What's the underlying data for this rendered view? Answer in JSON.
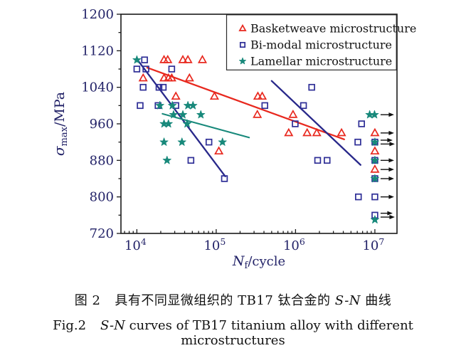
{
  "figure": {
    "caption_cn": {
      "label": "图 2",
      "pre": "具有不同显微组织的 TB17 钛合金的 ",
      "italic": "S-N",
      "post": " 曲线"
    },
    "caption_en": {
      "label": "Fig.2",
      "italic": "S-N",
      "post": " curves of TB17 titanium alloy with different microstructures"
    }
  },
  "colors": {
    "axis": "#1a1a1a",
    "tick_label": "#232368",
    "legend_text": "#141414",
    "legend_border": "#2a2a2a",
    "arrow": "#111111",
    "background": "#ffffff",
    "basketweave_red": "#e8281e",
    "bimodal_blue": "#2d2d96",
    "bimodal_line_blue": "#28288a",
    "lamellar_teal": "#18897b"
  },
  "chart_data": {
    "type": "scatter",
    "title": "",
    "x_axis": {
      "label_main": "N",
      "label_sub": "f",
      "label_post": "/cycle",
      "scale": "log",
      "range": [
        6300,
        19000000
      ],
      "major_ticks": [
        10000,
        100000,
        1000000,
        10000000
      ],
      "tick_base": "10",
      "tick_exponents": [
        "4",
        "5",
        "6",
        "7"
      ],
      "grid": false
    },
    "y_axis": {
      "label_main": "σ",
      "label_sub": "max",
      "label_post": "/MPa",
      "scale": "linear",
      "range": [
        720,
        1200
      ],
      "major_ticks": [
        1200,
        1120,
        1040,
        960,
        880,
        800,
        720
      ],
      "minor_ticks": [
        1160,
        1080,
        1000,
        920,
        840,
        760
      ],
      "grid": false
    },
    "legend": {
      "position": "top-right",
      "border": true
    },
    "series": [
      {
        "name": "Basketweave microstructure",
        "marker": "triangle",
        "color": "#e8281e",
        "points": [
          [
            22000,
            1100
          ],
          [
            24500,
            1100
          ],
          [
            38000,
            1100
          ],
          [
            44000,
            1100
          ],
          [
            67000,
            1100
          ],
          [
            12000,
            1060
          ],
          [
            22000,
            1060
          ],
          [
            25000,
            1060
          ],
          [
            27500,
            1060
          ],
          [
            46000,
            1060
          ],
          [
            31000,
            1020
          ],
          [
            95000,
            1020
          ],
          [
            335000,
            1020
          ],
          [
            380000,
            1020
          ],
          [
            330000,
            980
          ],
          [
            930000,
            980
          ],
          [
            820000,
            940
          ],
          [
            1400000,
            940
          ],
          [
            1850000,
            940
          ],
          [
            3800000,
            940
          ],
          [
            108000,
            900
          ],
          [
            10000000,
            940
          ],
          [
            10000000,
            900
          ],
          [
            10000000,
            860
          ]
        ]
      },
      {
        "name": "Bi-modal microstructure",
        "marker": "square",
        "color": "#2d2d96",
        "points": [
          [
            12500,
            1100
          ],
          [
            10000,
            1080
          ],
          [
            13000,
            1080
          ],
          [
            27500,
            1080
          ],
          [
            12000,
            1040
          ],
          [
            19000,
            1040
          ],
          [
            21500,
            1040
          ],
          [
            1600000,
            1040
          ],
          [
            11000,
            1000
          ],
          [
            18500,
            1000
          ],
          [
            31000,
            1000
          ],
          [
            410000,
            1000
          ],
          [
            1260000,
            1000
          ],
          [
            990000,
            960
          ],
          [
            6800000,
            960
          ],
          [
            81000,
            920
          ],
          [
            6100000,
            920
          ],
          [
            10000000,
            920
          ],
          [
            48000,
            880
          ],
          [
            1900000,
            880
          ],
          [
            2500000,
            880
          ],
          [
            10000000,
            880
          ],
          [
            127000,
            840
          ],
          [
            10000000,
            840
          ],
          [
            6200000,
            800
          ],
          [
            10000000,
            800
          ],
          [
            10000000,
            760
          ]
        ]
      },
      {
        "name": "Lamellar microstructure",
        "marker": "star",
        "color": "#18897b",
        "points": [
          [
            10000,
            1100
          ],
          [
            19500,
            1000
          ],
          [
            28000,
            1000
          ],
          [
            44000,
            1000
          ],
          [
            51000,
            1000
          ],
          [
            29000,
            980
          ],
          [
            38000,
            980
          ],
          [
            64000,
            980
          ],
          [
            22000,
            960
          ],
          [
            25000,
            960
          ],
          [
            43000,
            960
          ],
          [
            22000,
            920
          ],
          [
            37000,
            920
          ],
          [
            120000,
            920
          ],
          [
            24000,
            880
          ],
          [
            8600000,
            980
          ],
          [
            9900000,
            980
          ],
          [
            10000000,
            920
          ],
          [
            10000000,
            880
          ],
          [
            10000000,
            840
          ],
          [
            10000000,
            750
          ]
        ]
      }
    ],
    "trend_lines": [
      {
        "series": "Basketweave microstructure",
        "color": "#e8281e",
        "width": 2.3,
        "from": [
          13500,
          1083
        ],
        "to": [
          4100000,
          926
        ]
      },
      {
        "series": "Bi-modal microstructure",
        "color": "#28288a",
        "width": 2.3,
        "from": [
          10000,
          1102
        ],
        "to": [
          130000,
          845
        ]
      },
      {
        "series": "Bi-modal microstructure",
        "color": "#28288a",
        "width": 2.3,
        "from": [
          500000,
          1054
        ],
        "to": [
          6600000,
          870
        ]
      },
      {
        "series": "Lamellar microstructure",
        "color": "#18897b",
        "width": 2.1,
        "from": [
          21000,
          982
        ],
        "to": [
          260000,
          930
        ]
      }
    ],
    "runout_arrows": [
      {
        "y": 980,
        "count": 1
      },
      {
        "y": 940,
        "count": 1
      },
      {
        "y": 920,
        "count": 2
      },
      {
        "y": 880,
        "count": 1
      },
      {
        "y": 860,
        "count": 1
      },
      {
        "y": 840,
        "count": 1
      },
      {
        "y": 800,
        "count": 1
      },
      {
        "y": 760,
        "count": 2
      }
    ]
  }
}
